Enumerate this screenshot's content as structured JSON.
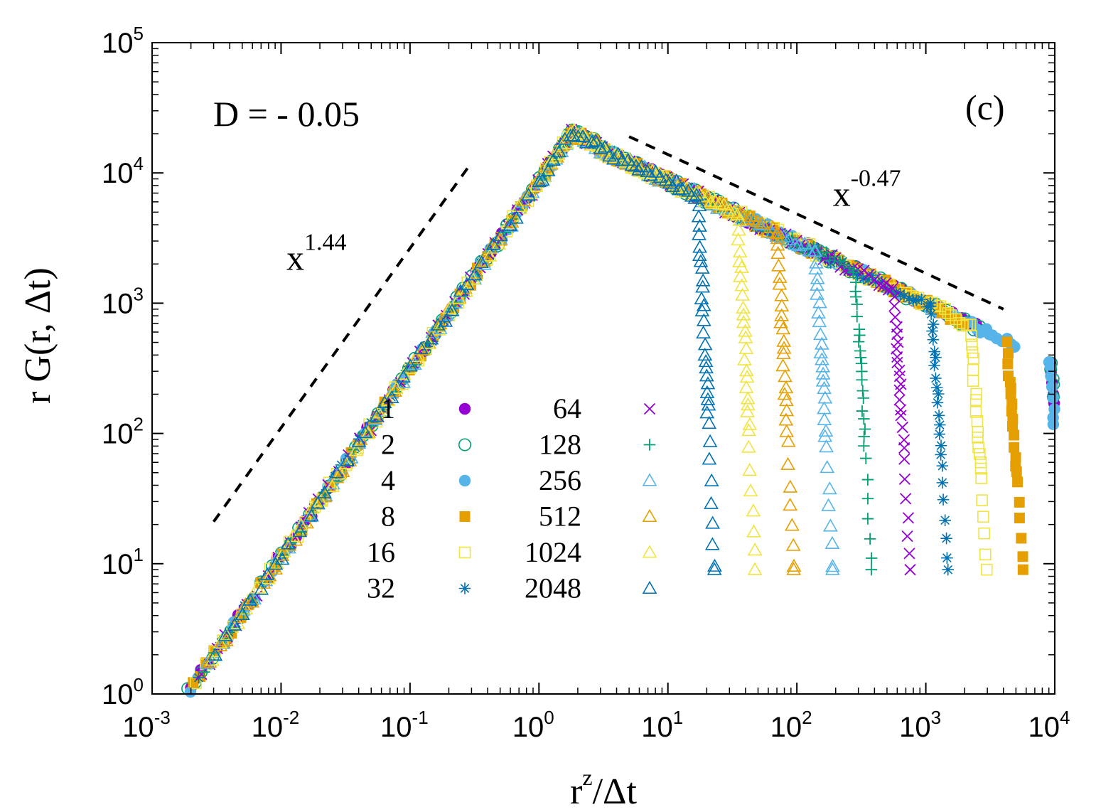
{
  "chart_data": {
    "type": "scatter",
    "title": "",
    "panel_label": "(c)",
    "parameter_label": "D = - 0.05",
    "xlabel": {
      "base": "r",
      "sup": "z",
      "rest": "/Δt"
    },
    "ylabel": "r G(r, Δt)",
    "xscale": "log",
    "yscale": "log",
    "xlim": [
      0.001,
      10000
    ],
    "ylim": [
      1,
      100000
    ],
    "x_ticks": [
      {
        "value": 0.001,
        "base": "10",
        "exp": "-3"
      },
      {
        "value": 0.01,
        "base": "10",
        "exp": "-2"
      },
      {
        "value": 0.1,
        "base": "10",
        "exp": "-1"
      },
      {
        "value": 1,
        "base": "10",
        "exp": "0"
      },
      {
        "value": 10,
        "base": "10",
        "exp": "1"
      },
      {
        "value": 100,
        "base": "10",
        "exp": "2"
      },
      {
        "value": 1000,
        "base": "10",
        "exp": "3"
      },
      {
        "value": 10000,
        "base": "10",
        "exp": "4"
      }
    ],
    "y_ticks": [
      {
        "value": 1,
        "base": "10",
        "exp": "0"
      },
      {
        "value": 10,
        "base": "10",
        "exp": "1"
      },
      {
        "value": 100,
        "base": "10",
        "exp": "2"
      },
      {
        "value": 1000,
        "base": "10",
        "exp": "3"
      },
      {
        "value": 10000,
        "base": "10",
        "exp": "4"
      },
      {
        "value": 100000,
        "base": "10",
        "exp": "5"
      }
    ],
    "guide_lines": [
      {
        "label_base": "x",
        "label_sup": "1.44",
        "x": [
          0.003,
          0.3
        ],
        "y": [
          21,
          12000
        ],
        "label_at": [
          0.011,
          1800
        ]
      },
      {
        "label_base": "x",
        "label_sup": "-0.47",
        "x": [
          5,
          4000
        ],
        "y": [
          19000,
          900
        ],
        "label_at": [
          190,
          5600
        ]
      }
    ],
    "series": [
      {
        "name": "1",
        "marker": "filled-circle",
        "color": "#9400D3",
        "dt": 1
      },
      {
        "name": "2",
        "marker": "open-circle",
        "color": "#009E73",
        "dt": 2
      },
      {
        "name": "4",
        "marker": "filled-circle",
        "color": "#56B4E9",
        "dt": 4
      },
      {
        "name": "8",
        "marker": "filled-square",
        "color": "#E69F00",
        "dt": 8
      },
      {
        "name": "16",
        "marker": "open-square",
        "color": "#F0E442",
        "dt": 16
      },
      {
        "name": "32",
        "marker": "star",
        "color": "#0072B2",
        "dt": 32
      },
      {
        "name": "64",
        "marker": "cross-x",
        "color": "#9400D3",
        "dt": 64
      },
      {
        "name": "128",
        "marker": "plus",
        "color": "#009E73",
        "dt": 128
      },
      {
        "name": "256",
        "marker": "open-triangle",
        "color": "#56B4E9",
        "dt": 256
      },
      {
        "name": "512",
        "marker": "open-triangle",
        "color": "#E69F00",
        "dt": 512
      },
      {
        "name": "1024",
        "marker": "open-triangle",
        "color": "#F0E442",
        "dt": 1024
      },
      {
        "name": "2048",
        "marker": "open-triangle",
        "color": "#0072B2",
        "dt": 2048
      }
    ],
    "collapse_curve": {
      "rise_exponent": 1.44,
      "peak_x": 1.8,
      "peak_y": 21000,
      "tail_exponent": -0.47,
      "cutoff_x_by_series": [
        9300,
        9300,
        9000,
        4200,
        2200,
        1100,
        560,
        280,
        140,
        70,
        35,
        17
      ],
      "floor_y": 9
    }
  }
}
